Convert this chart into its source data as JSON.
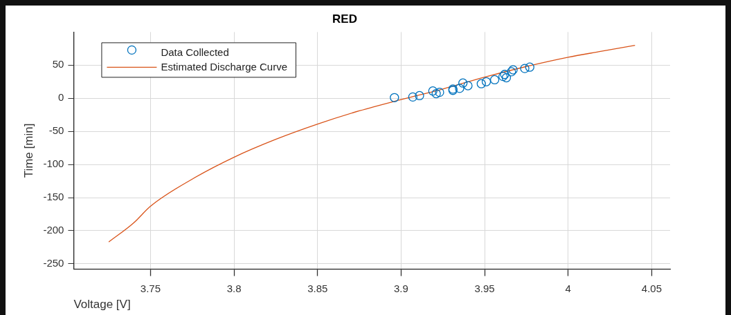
{
  "chart_data": {
    "type": "scatter",
    "title": "RED",
    "xlabel": "Voltage [V]",
    "ylabel": "Time [min]",
    "xlim": [
      3.704,
      4.061
    ],
    "xticks": [
      3.75,
      3.8,
      3.85,
      3.9,
      3.95,
      4,
      4.05
    ],
    "ylim": [
      -258,
      100
    ],
    "yticks": [
      -250,
      -200,
      -150,
      -100,
      -50,
      0,
      50
    ],
    "grid": true,
    "legend": "top left",
    "marker": "circle",
    "series": [
      {
        "name": "Data Collected",
        "type": "scatter",
        "color": "#0072bd",
        "x": [
          3.896,
          3.907,
          3.911,
          3.919,
          3.921,
          3.923,
          3.931,
          3.931,
          3.935,
          3.937,
          3.94,
          3.948,
          3.951,
          3.956,
          3.961,
          3.962,
          3.963,
          3.966,
          3.967,
          3.974,
          3.977
        ],
        "values": [
          1,
          2,
          4,
          11,
          7,
          9,
          14,
          12,
          15,
          23,
          19,
          22,
          25,
          28,
          33,
          36,
          31,
          40,
          43,
          45,
          47
        ]
      },
      {
        "name": "Estimated Discharge Curve",
        "type": "line",
        "marker": "none",
        "line_style": "solid",
        "color": "#d95319",
        "x": [
          3.725,
          3.74,
          3.75,
          3.775,
          3.8,
          3.825,
          3.85,
          3.875,
          3.9,
          3.925,
          3.95,
          3.975,
          4,
          4.02,
          4.04
        ],
        "values": [
          -217,
          -188,
          -163,
          -122,
          -89,
          -62,
          -39,
          -19,
          -2,
          14,
          32,
          48,
          62,
          71,
          80
        ]
      }
    ]
  }
}
